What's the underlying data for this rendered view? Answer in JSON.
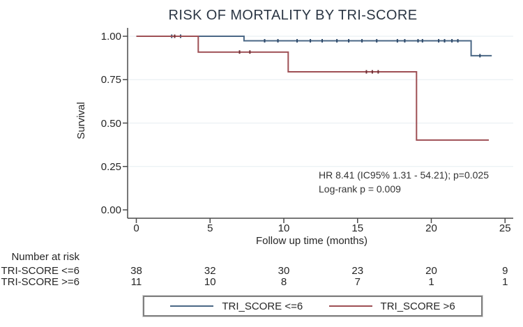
{
  "title": "RISK OF MORTALITY BY TRI-SCORE",
  "chart_data": {
    "type": "line",
    "subtype": "kaplan-meier-step",
    "title": "RISK OF MORTALITY BY TRI-SCORE",
    "xlabel": "Follow up time (months)",
    "ylabel": "Survival",
    "xlim": [
      0,
      25
    ],
    "ylim": [
      0,
      1
    ],
    "xticks": [
      0,
      5,
      10,
      15,
      20,
      25
    ],
    "yticks": [
      {
        "v": 0.0,
        "label": "0.00"
      },
      {
        "v": 0.25,
        "label": "0.25"
      },
      {
        "v": 0.5,
        "label": "0.50"
      },
      {
        "v": 0.75,
        "label": "0.75"
      },
      {
        "v": 1.0,
        "label": "1.00"
      }
    ],
    "grid": "horizontal-light",
    "legend_position": "bottom-center-boxed",
    "series": [
      {
        "name": "TRI_SCORE <=6",
        "color": "#4a6785",
        "censor_color": "#2e4a6b",
        "points": [
          [
            0,
            1.0
          ],
          [
            7.3,
            1.0
          ],
          [
            7.3,
            0.974
          ],
          [
            22.7,
            0.974
          ],
          [
            22.7,
            0.888
          ],
          [
            24.1,
            0.888
          ]
        ],
        "censors": [
          [
            2.4,
            1.0
          ],
          [
            3.0,
            1.0
          ],
          [
            8.7,
            0.974
          ],
          [
            9.6,
            0.974
          ],
          [
            10.9,
            0.974
          ],
          [
            11.8,
            0.974
          ],
          [
            12.6,
            0.974
          ],
          [
            13.6,
            0.974
          ],
          [
            14.4,
            0.974
          ],
          [
            15.3,
            0.974
          ],
          [
            16.3,
            0.974
          ],
          [
            17.7,
            0.974
          ],
          [
            18.2,
            0.974
          ],
          [
            19.1,
            0.974
          ],
          [
            19.4,
            0.974
          ],
          [
            20.5,
            0.974
          ],
          [
            20.9,
            0.974
          ],
          [
            21.4,
            0.974
          ],
          [
            21.8,
            0.974
          ],
          [
            23.3,
            0.888
          ]
        ]
      },
      {
        "name": "TRI_SCORE >6",
        "color": "#9e4f54",
        "censor_color": "#703036",
        "points": [
          [
            0,
            1.0
          ],
          [
            4.2,
            1.0
          ],
          [
            4.2,
            0.909
          ],
          [
            10.3,
            0.909
          ],
          [
            10.3,
            0.795
          ],
          [
            19.0,
            0.795
          ],
          [
            19.0,
            0.402
          ],
          [
            23.9,
            0.402
          ]
        ],
        "censors": [
          [
            2.6,
            1.0
          ],
          [
            7.0,
            0.909
          ],
          [
            7.7,
            0.909
          ],
          [
            15.6,
            0.795
          ],
          [
            16.0,
            0.795
          ],
          [
            16.4,
            0.795
          ]
        ]
      }
    ],
    "annotations": [
      "HR 8.41 (IC95% 1.31 - 54.21); p=0.025",
      "Log-rank p = 0.009"
    ]
  },
  "risk_table": {
    "header": "Number at risk",
    "time_points": [
      0,
      5,
      10,
      15,
      20,
      25
    ],
    "rows": [
      {
        "label": "TRI-SCORE <=6",
        "values": [
          "38",
          "32",
          "30",
          "23",
          "20",
          "9"
        ]
      },
      {
        "label": "TRI-SCORE >=6",
        "values": [
          "11",
          "10",
          "8",
          "7",
          "1",
          "1"
        ]
      }
    ]
  },
  "legend": {
    "items": [
      {
        "label": "TRI_SCORE <=6",
        "color": "#4a6785"
      },
      {
        "label": "TRI_SCORE >6",
        "color": "#9e4f54"
      }
    ]
  },
  "colors": {
    "axis": "#4a4a4a",
    "grid": "#e6edf1",
    "text": "#262626",
    "title": "#2b3644",
    "background": "#ffffff"
  }
}
